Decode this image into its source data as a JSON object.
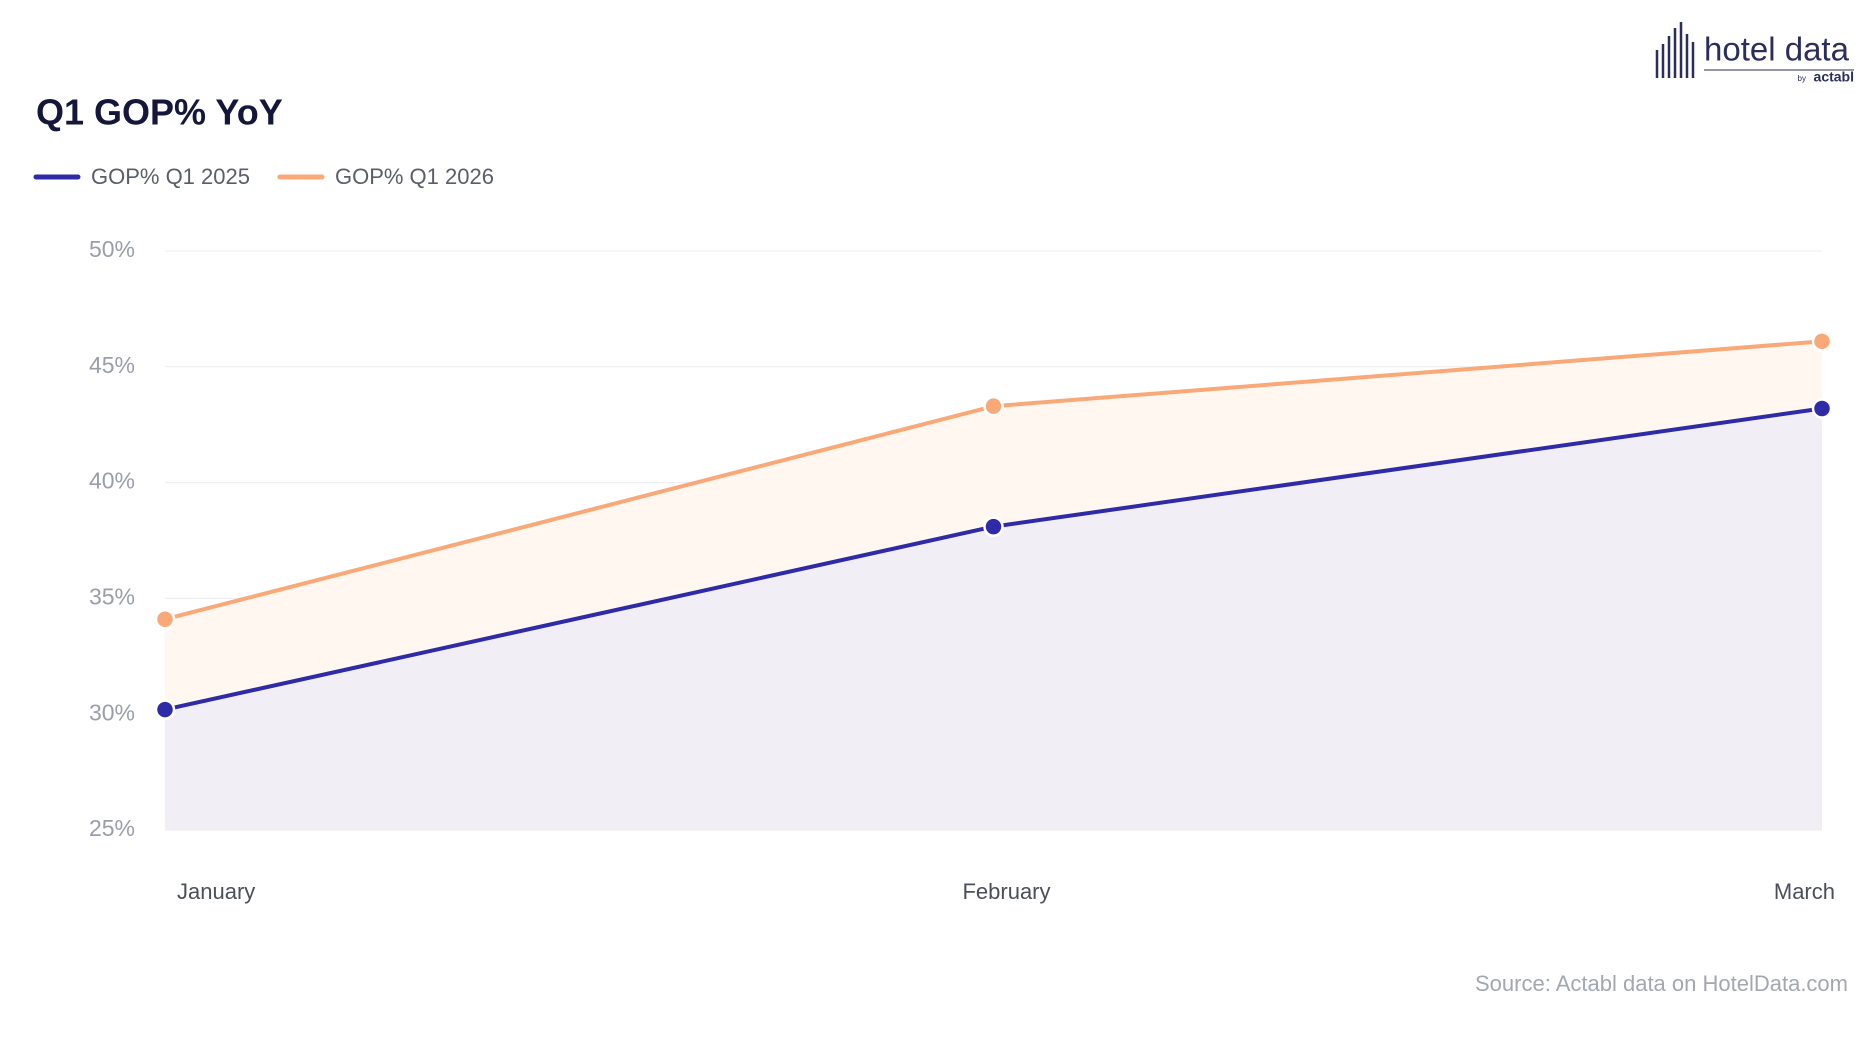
{
  "chart_data": {
    "type": "line",
    "title": "Q1 GOP% YoY",
    "categories": [
      "January",
      "February",
      "March"
    ],
    "series": [
      {
        "name": "GOP% Q1 2025",
        "color": "#2e2aa8",
        "area_color": "#f2eef5",
        "values": [
          30.2,
          38.1,
          43.2
        ]
      },
      {
        "name": "GOP% Q1 2026",
        "color": "#f9a878",
        "area_color": "#fff7f0",
        "values": [
          34.1,
          43.3,
          46.1
        ]
      }
    ],
    "ylim": [
      25,
      50
    ],
    "yticks": [
      {
        "value": 25,
        "label": "25%"
      },
      {
        "value": 30,
        "label": "30%"
      },
      {
        "value": 35,
        "label": "35%"
      },
      {
        "value": 40,
        "label": "40%"
      },
      {
        "value": 45,
        "label": "45%"
      },
      {
        "value": 50,
        "label": "50%"
      }
    ],
    "grid": true,
    "legend": "top-left",
    "source": "Source: Actabl data on HotelData.com",
    "logo": {
      "text": "hotel data",
      "by": "by",
      "brand": "actabl"
    }
  }
}
